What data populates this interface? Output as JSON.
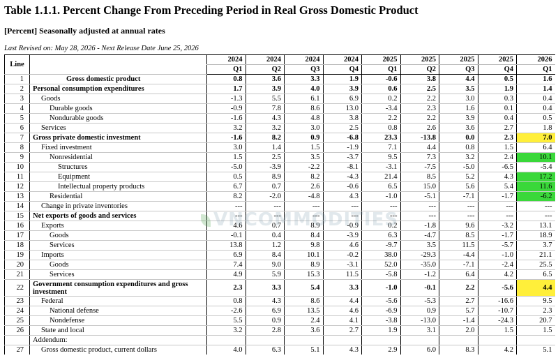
{
  "title": "Table 1.1.1. Percent Change From Preceding Period in Real Gross Domestic Product",
  "subtitle": "[Percent] Seasonally adjusted at annual rates",
  "revised": "Last Revised on: May 28, 2026 - Next Release Date June 25, 2026",
  "watermark": "VNCOMMODITIES",
  "colors": {
    "yellow": "#ffef3a",
    "green": "#3ad83a"
  },
  "header": {
    "line": "Line",
    "years": [
      "2024",
      "2024",
      "2024",
      "2024",
      "2025",
      "2025",
      "2025",
      "2025",
      "2026"
    ],
    "quarters": [
      "Q1",
      "Q2",
      "Q3",
      "Q4",
      "Q1",
      "Q2",
      "Q3",
      "Q4",
      "Q1"
    ]
  },
  "rows": [
    {
      "line": "1",
      "label": "Gross domestic product",
      "indent": 4,
      "bold": true,
      "values": [
        "0.8",
        "3.6",
        "3.3",
        "1.9",
        "-0.6",
        "3.8",
        "4.4",
        "0.5",
        "1.6"
      ]
    },
    {
      "line": "2",
      "label": "Personal consumption expenditures",
      "indent": 0,
      "bold": true,
      "values": [
        "1.7",
        "3.9",
        "4.0",
        "3.9",
        "0.6",
        "2.5",
        "3.5",
        "1.9",
        "1.4"
      ]
    },
    {
      "line": "3",
      "label": "Goods",
      "indent": 1,
      "values": [
        "-1.3",
        "5.5",
        "6.1",
        "6.9",
        "0.2",
        "2.2",
        "3.0",
        "0.3",
        "0.4"
      ]
    },
    {
      "line": "4",
      "label": "Durable goods",
      "indent": 2,
      "values": [
        "-0.9",
        "7.8",
        "8.6",
        "13.0",
        "-3.4",
        "2.3",
        "1.6",
        "0.1",
        "0.4"
      ]
    },
    {
      "line": "5",
      "label": "Nondurable goods",
      "indent": 2,
      "values": [
        "-1.6",
        "4.3",
        "4.8",
        "3.8",
        "2.2",
        "2.2",
        "3.9",
        "0.4",
        "0.5"
      ]
    },
    {
      "line": "6",
      "label": "Services",
      "indent": 1,
      "values": [
        "3.2",
        "3.2",
        "3.0",
        "2.5",
        "0.8",
        "2.6",
        "3.6",
        "2.7",
        "1.8"
      ]
    },
    {
      "line": "7",
      "label": "Gross private domestic investment",
      "indent": 0,
      "bold": true,
      "values": [
        "-1.6",
        "8.2",
        "0.9",
        "-6.8",
        "23.3",
        "-13.8",
        "0.0",
        "2.3",
        "7.0"
      ],
      "highlight": "yellow"
    },
    {
      "line": "8",
      "label": "Fixed investment",
      "indent": 1,
      "values": [
        "3.0",
        "1.4",
        "1.5",
        "-1.9",
        "7.1",
        "4.4",
        "0.8",
        "1.5",
        "6.4"
      ]
    },
    {
      "line": "9",
      "label": "Nonresidential",
      "indent": 2,
      "values": [
        "1.5",
        "2.5",
        "3.5",
        "-3.7",
        "9.5",
        "7.3",
        "3.2",
        "2.4",
        "10.1"
      ],
      "highlight": "green"
    },
    {
      "line": "10",
      "label": "Structures",
      "indent": 3,
      "values": [
        "-5.0",
        "-3.9",
        "-2.2",
        "-8.1",
        "-3.1",
        "-7.5",
        "-5.0",
        "-6.5",
        "-5.4"
      ]
    },
    {
      "line": "11",
      "label": "Equipment",
      "indent": 3,
      "values": [
        "0.5",
        "8.9",
        "8.2",
        "-4.3",
        "21.4",
        "8.5",
        "5.2",
        "4.3",
        "17.2"
      ],
      "highlight": "green"
    },
    {
      "line": "12",
      "label": "Intellectual property products",
      "indent": 3,
      "values": [
        "6.7",
        "0.7",
        "2.6",
        "-0.6",
        "6.5",
        "15.0",
        "5.6",
        "5.4",
        "11.6"
      ],
      "highlight": "green"
    },
    {
      "line": "13",
      "label": "Residential",
      "indent": 2,
      "values": [
        "8.2",
        "-2.0",
        "-4.8",
        "4.3",
        "-1.0",
        "-5.1",
        "-7.1",
        "-1.7",
        "-6.2"
      ],
      "highlight": "green"
    },
    {
      "line": "14",
      "label": "Change in private inventories",
      "indent": 1,
      "values": [
        "---",
        "---",
        "---",
        "---",
        "---",
        "---",
        "---",
        "---",
        "---"
      ]
    },
    {
      "line": "15",
      "label": "Net exports of goods and services",
      "indent": 0,
      "bold": true,
      "values": [
        "---",
        "---",
        "---",
        "---",
        "---",
        "---",
        "---",
        "---",
        "---"
      ]
    },
    {
      "line": "16",
      "label": "Exports",
      "indent": 1,
      "values": [
        "4.6",
        "0.7",
        "8.9",
        "-0.9",
        "0.2",
        "-1.8",
        "9.6",
        "-3.2",
        "13.1"
      ]
    },
    {
      "line": "17",
      "label": "Goods",
      "indent": 2,
      "values": [
        "-0.1",
        "0.4",
        "8.4",
        "-3.9",
        "6.3",
        "-4.7",
        "8.5",
        "-1.7",
        "18.9"
      ]
    },
    {
      "line": "18",
      "label": "Services",
      "indent": 2,
      "values": [
        "13.8",
        "1.2",
        "9.8",
        "4.6",
        "-9.7",
        "3.5",
        "11.5",
        "-5.7",
        "3.7"
      ]
    },
    {
      "line": "19",
      "label": "Imports",
      "indent": 1,
      "values": [
        "6.9",
        "8.4",
        "10.1",
        "-0.2",
        "38.0",
        "-29.3",
        "-4.4",
        "-1.0",
        "21.1"
      ]
    },
    {
      "line": "20",
      "label": "Goods",
      "indent": 2,
      "values": [
        "7.4",
        "9.0",
        "8.9",
        "-3.1",
        "52.0",
        "-35.0",
        "-7.1",
        "-2.4",
        "25.5"
      ]
    },
    {
      "line": "21",
      "label": "Services",
      "indent": 2,
      "values": [
        "4.9",
        "5.9",
        "15.3",
        "11.5",
        "-5.8",
        "-1.2",
        "6.4",
        "4.2",
        "6.5"
      ]
    },
    {
      "line": "22",
      "label": "Government consumption expenditures and gross investment",
      "indent": 0,
      "bold": true,
      "tall": true,
      "values": [
        "2.3",
        "3.3",
        "5.4",
        "3.3",
        "-1.0",
        "-0.1",
        "2.2",
        "-5.6",
        "4.4"
      ],
      "highlight": "yellow"
    },
    {
      "line": "23",
      "label": "Federal",
      "indent": 1,
      "values": [
        "0.8",
        "4.3",
        "8.6",
        "4.4",
        "-5.6",
        "-5.3",
        "2.7",
        "-16.6",
        "9.5"
      ]
    },
    {
      "line": "24",
      "label": "National defense",
      "indent": 2,
      "values": [
        "-2.6",
        "6.9",
        "13.5",
        "4.6",
        "-6.9",
        "0.9",
        "5.7",
        "-10.7",
        "2.3"
      ]
    },
    {
      "line": "25",
      "label": "Nondefense",
      "indent": 2,
      "values": [
        "5.5",
        "0.9",
        "2.4",
        "4.1",
        "-3.8",
        "-13.0",
        "-1.4",
        "-24.3",
        "20.7"
      ]
    },
    {
      "line": "26",
      "label": "State and local",
      "indent": 1,
      "values": [
        "3.2",
        "2.8",
        "3.6",
        "2.7",
        "1.9",
        "3.1",
        "2.0",
        "1.5",
        "1.5"
      ]
    },
    {
      "line": "",
      "label": "Addendum:",
      "indent": 0,
      "values": [
        "",
        "",
        "",
        "",
        "",
        "",
        "",
        "",
        ""
      ]
    },
    {
      "line": "27",
      "label": "Gross domestic product, current dollars",
      "indent": 1,
      "values": [
        "4.0",
        "6.3",
        "5.1",
        "4.3",
        "2.9",
        "6.0",
        "8.3",
        "4.2",
        "5.1"
      ]
    }
  ]
}
